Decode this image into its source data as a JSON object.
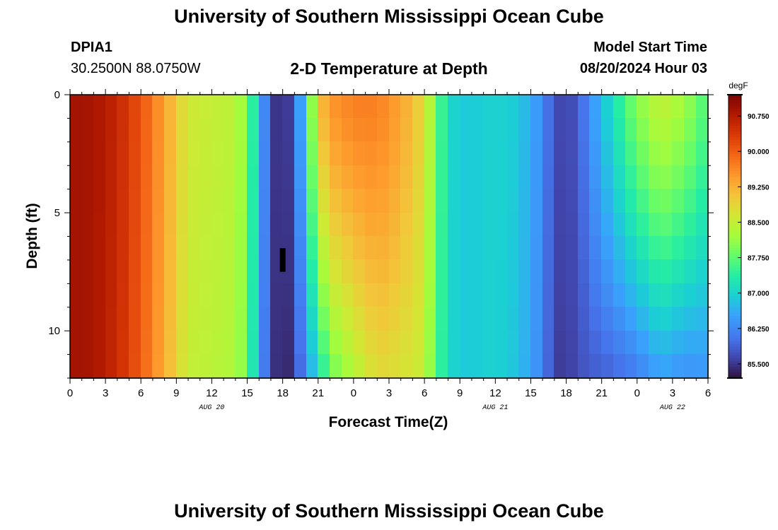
{
  "header": {
    "title": "University of Southern Mississippi Ocean Cube",
    "station_id": "DPIA1",
    "station_coords": "30.2500N  88.0750W",
    "plot_title": "2-D Temperature at Depth",
    "model_start_label": "Model Start Time",
    "model_start_value": "08/20/2024 Hour 03"
  },
  "footer": {
    "title": "University of Southern Mississippi Ocean Cube"
  },
  "chart_data": {
    "type": "heatmap",
    "title": "2-D Temperature at Depth",
    "xlabel": "Forecast Time(Z)",
    "ylabel": "Depth (ft)",
    "x_hours": [
      0,
      3,
      6,
      9,
      12,
      15,
      18,
      21,
      24,
      27,
      30,
      33,
      36,
      39,
      42,
      45,
      48,
      51,
      54
    ],
    "x_tick_labels": [
      "0",
      "3",
      "6",
      "9",
      "12",
      "15",
      "18",
      "21",
      "0",
      "3",
      "6",
      "9",
      "12",
      "15",
      "18",
      "21",
      "0",
      "3",
      "6"
    ],
    "date_labels": [
      {
        "label": "AUG 20",
        "hour": 12
      },
      {
        "label": "AUG 21",
        "hour": 36
      },
      {
        "label": "AUG 22",
        "hour": 51
      }
    ],
    "xlim": [
      0,
      54
    ],
    "ylim": [
      0,
      12
    ],
    "y_ticks": [
      0,
      5,
      10
    ],
    "y_tick_labels": [
      "0",
      "5",
      "10"
    ],
    "colorbar": {
      "unit": "degF",
      "min": 85.2,
      "max": 91.2,
      "ticks": [
        90.75,
        90.0,
        89.25,
        88.5,
        87.75,
        87.0,
        86.25,
        85.5
      ],
      "tick_labels": [
        "90.750",
        "90.000",
        "89.250",
        "88.500",
        "87.750",
        "87.000",
        "86.250",
        "85.500"
      ]
    },
    "time_hours": [
      0,
      2,
      4,
      6,
      8,
      10,
      12,
      14,
      15,
      16,
      17,
      18,
      19,
      20,
      21,
      22,
      24,
      26,
      28,
      30,
      31,
      32,
      33,
      34,
      36,
      38,
      40,
      41,
      42,
      43,
      44,
      46,
      48,
      50,
      52,
      54
    ],
    "depth_ft": [
      0,
      2,
      4,
      6,
      8,
      10,
      12
    ],
    "surface_temp_degF": [
      90.9,
      90.85,
      90.6,
      90.1,
      89.4,
      88.6,
      88.5,
      88.4,
      88.0,
      86.8,
      85.7,
      85.3,
      85.8,
      87.2,
      89.0,
      89.5,
      89.7,
      89.7,
      89.4,
      88.8,
      87.9,
      87.1,
      86.9,
      86.9,
      87.0,
      86.9,
      86.3,
      85.7,
      85.6,
      85.8,
      86.3,
      87.2,
      88.0,
      88.5,
      88.2,
      87.6
    ],
    "bottom_temp_degF": [
      90.9,
      90.85,
      90.55,
      90.0,
      89.3,
      88.5,
      88.4,
      88.3,
      87.9,
      86.6,
      85.6,
      85.3,
      85.5,
      86.4,
      87.0,
      87.8,
      88.3,
      88.8,
      88.7,
      88.5,
      87.7,
      87.1,
      86.9,
      86.9,
      87.0,
      86.8,
      86.2,
      85.6,
      85.5,
      85.7,
      85.8,
      85.9,
      86.1,
      86.5,
      86.3,
      86.4
    ],
    "missing_cell": {
      "hour": 18,
      "depth_from_ft": 6.5,
      "depth_to_ft": 7.5
    }
  }
}
